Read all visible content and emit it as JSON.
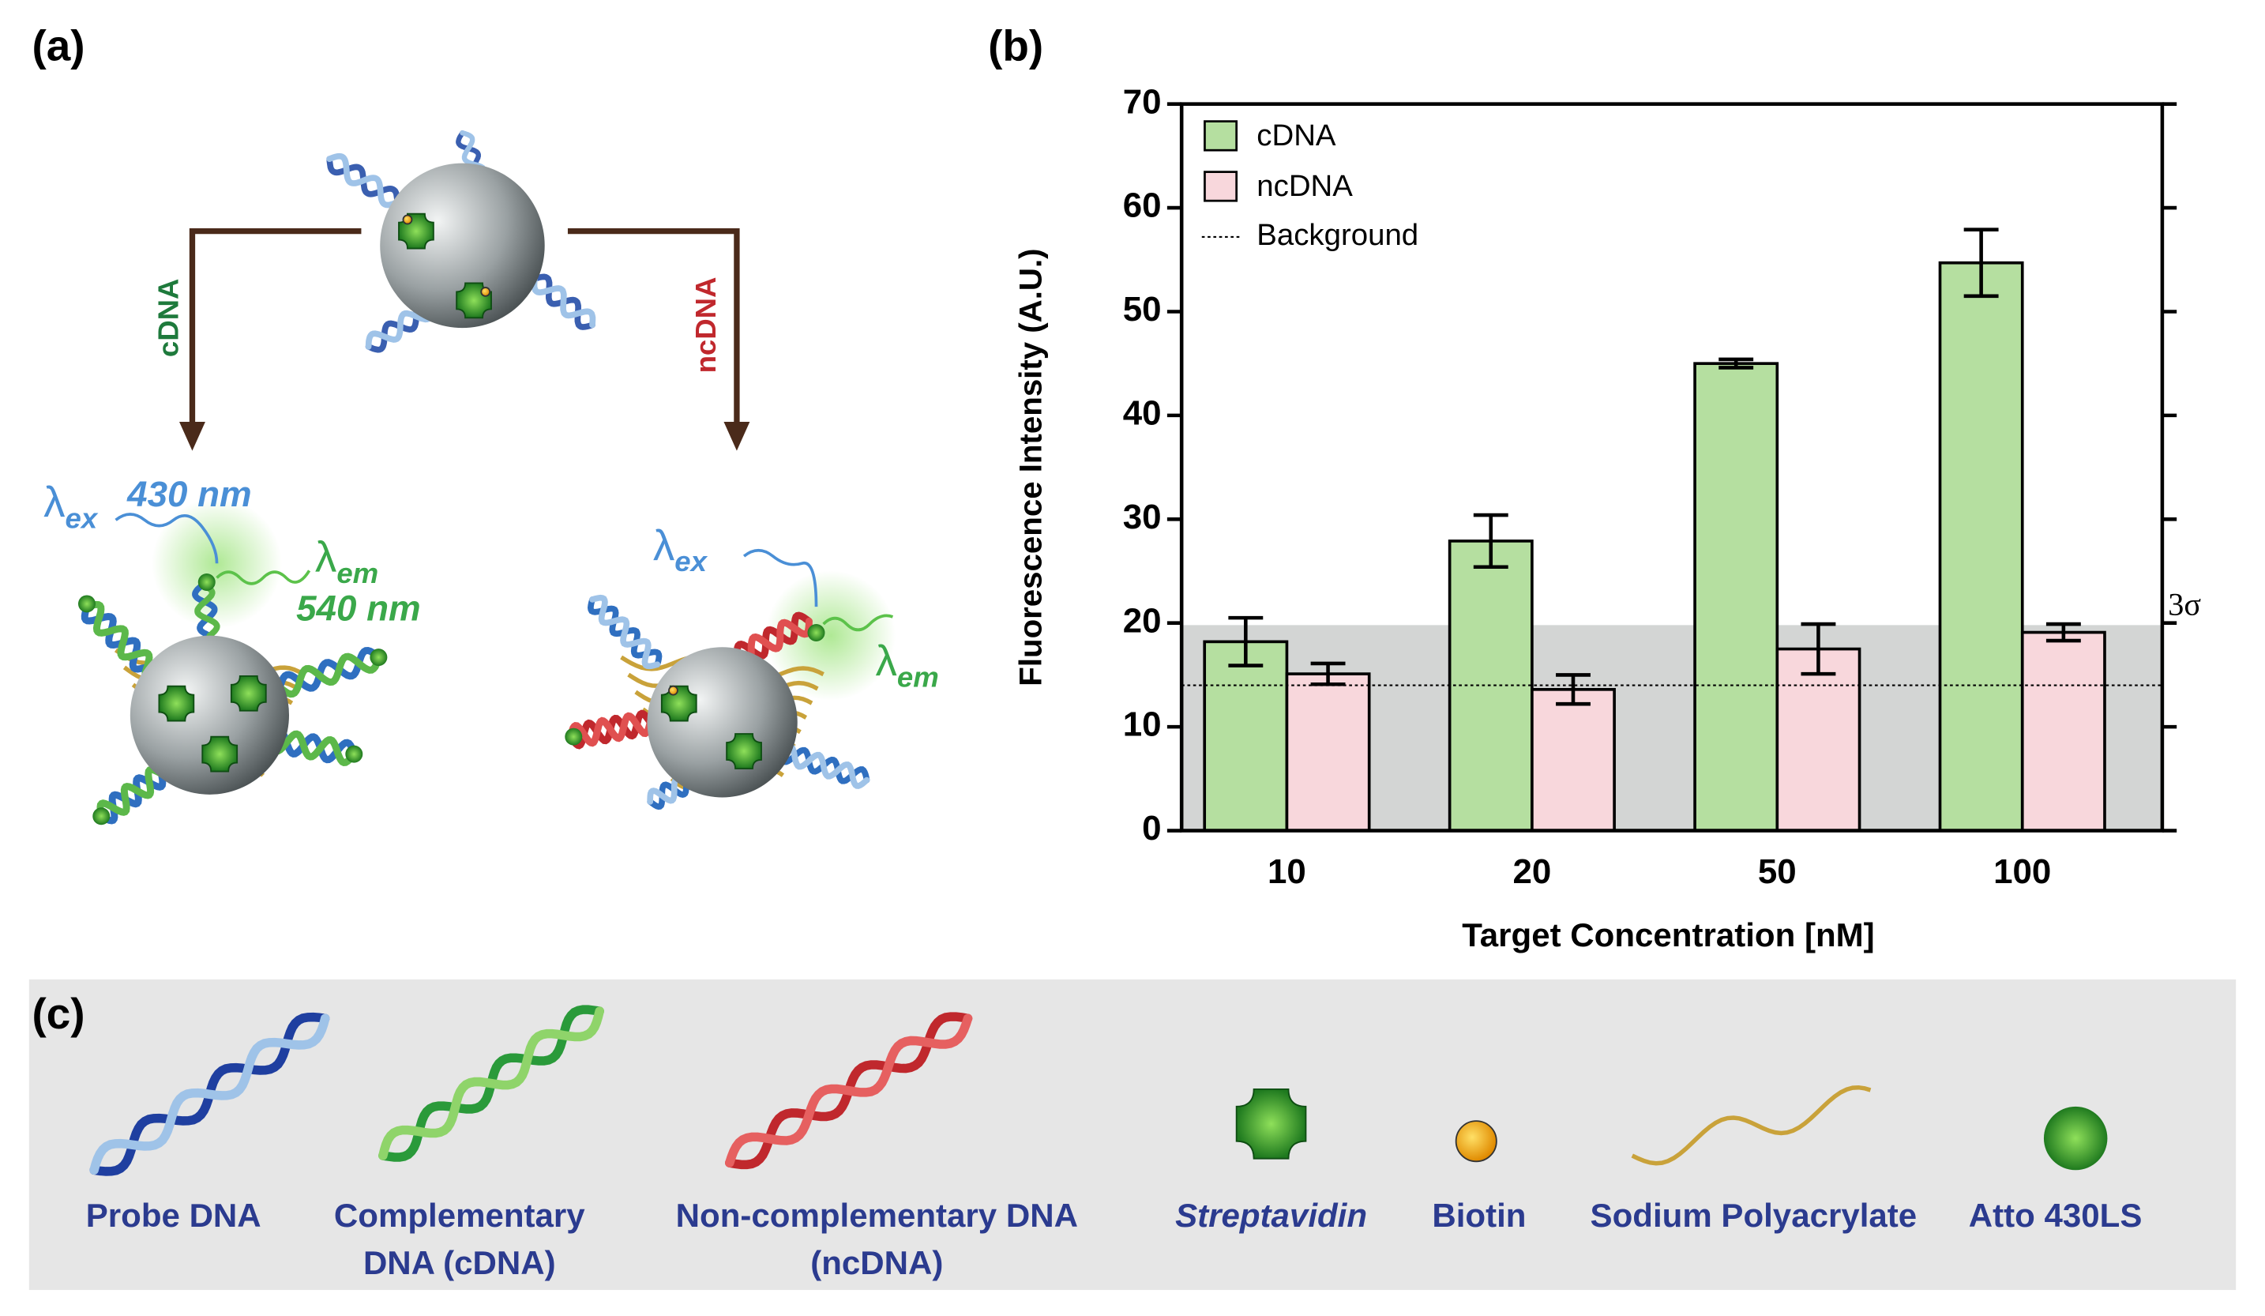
{
  "panels": {
    "a": "(a)",
    "b": "(b)",
    "c": "(c)"
  },
  "scheme": {
    "left_branch": "cDNA",
    "right_branch": "ncDNA",
    "left_ex": {
      "symbol": "λ",
      "sub": "ex",
      "text": "430 nm"
    },
    "left_em": {
      "symbol": "λ",
      "sub": "em",
      "text": "540 nm"
    },
    "right_ex": {
      "symbol": "λ",
      "sub": "ex"
    },
    "right_em": {
      "symbol": "λ",
      "sub": "em"
    }
  },
  "legend_items": [
    {
      "lines": [
        "Probe DNA"
      ]
    },
    {
      "lines": [
        "Complementary",
        "DNA (cDNA)"
      ]
    },
    {
      "lines": [
        "Non-complementary DNA",
        "(ncDNA)"
      ]
    },
    {
      "lines": [
        "Streptavidin"
      ]
    },
    {
      "lines": [
        "Biotin"
      ]
    },
    {
      "lines": [
        "Sodium Polyacrylate"
      ]
    },
    {
      "lines": [
        "Atto 430LS"
      ]
    }
  ],
  "chart_data": {
    "type": "bar",
    "x_label": "Target Concentration [nM]",
    "y_label": "Fluorescence Intensity (A.U.)",
    "categories": [
      "10",
      "20",
      "50",
      "100"
    ],
    "series": [
      {
        "name": "cDNA",
        "color": "#b5dfa0",
        "values": [
          18.2,
          27.9,
          45,
          54.7
        ],
        "errors": [
          2.3,
          2.5,
          0.4,
          3.2
        ]
      },
      {
        "name": "ncDNA",
        "color": "#f8d7dc",
        "values": [
          15.1,
          13.6,
          17.5,
          19.1
        ],
        "errors": [
          1.0,
          1.4,
          2.4,
          0.8
        ]
      }
    ],
    "background": {
      "name": "Background",
      "value": 14
    },
    "threshold": {
      "label": "3σ",
      "value": 19.8,
      "color": "#d3d5d4"
    },
    "ylim": [
      0,
      70
    ],
    "yticks": [
      0,
      10,
      20,
      30,
      40,
      50,
      60,
      70
    ],
    "legend": "upper left"
  }
}
